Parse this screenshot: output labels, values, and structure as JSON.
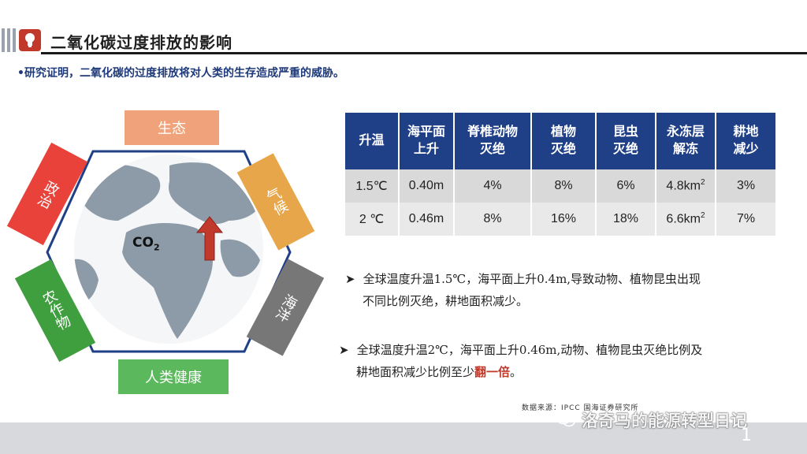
{
  "header": {
    "title": "二氧化碳过度排放的影响",
    "subtitle": "•研究证明，二氧化碳的过度排放将对人类的生存造成严重的威胁。"
  },
  "diagram": {
    "center_label": "CO",
    "center_sub": "2",
    "tiles": [
      {
        "label": "生态",
        "color": "#f0a27a"
      },
      {
        "label": "气候",
        "color": "#e8a64a"
      },
      {
        "label": "海洋",
        "color": "#777777"
      },
      {
        "label": "人类健康",
        "color": "#5cb85c"
      },
      {
        "label": "农作物",
        "color": "#3f9f3f"
      },
      {
        "label": "政治",
        "color": "#e8423a"
      }
    ]
  },
  "table": {
    "headers": [
      "升温",
      "海平面\n上升",
      "脊椎动物\n灭绝",
      "植物\n灭绝",
      "昆虫\n灭绝",
      "永冻层\n解冻",
      "耕地\n减少"
    ],
    "rows": [
      [
        "1.5℃",
        "0.40m",
        "4%",
        "8%",
        "6%",
        "4.8km",
        "3%"
      ],
      [
        "2 ℃",
        "0.46m",
        "8%",
        "16%",
        "18%",
        "6.6km",
        "7%"
      ]
    ],
    "superscript": "2"
  },
  "bullets": {
    "b1_line1": "全球温度升温1.5℃，海平面上升0.4m,导致动物、植物昆虫出现",
    "b1_line2": "不同比例灭绝，耕地面积减少。",
    "b2_line1": "全球温度升温2℃，海平面上升0.46m,动物、植物昆虫灭绝比例及",
    "b2_line2_pre": "耕地面积减少比例至少",
    "b2_line2_hl": "翻一倍",
    "b2_line2_post": "。"
  },
  "source": "数据来源：IPCC 国海证券研究所",
  "watermark": "洛奇马的能源转型日记",
  "page_number": "1"
}
